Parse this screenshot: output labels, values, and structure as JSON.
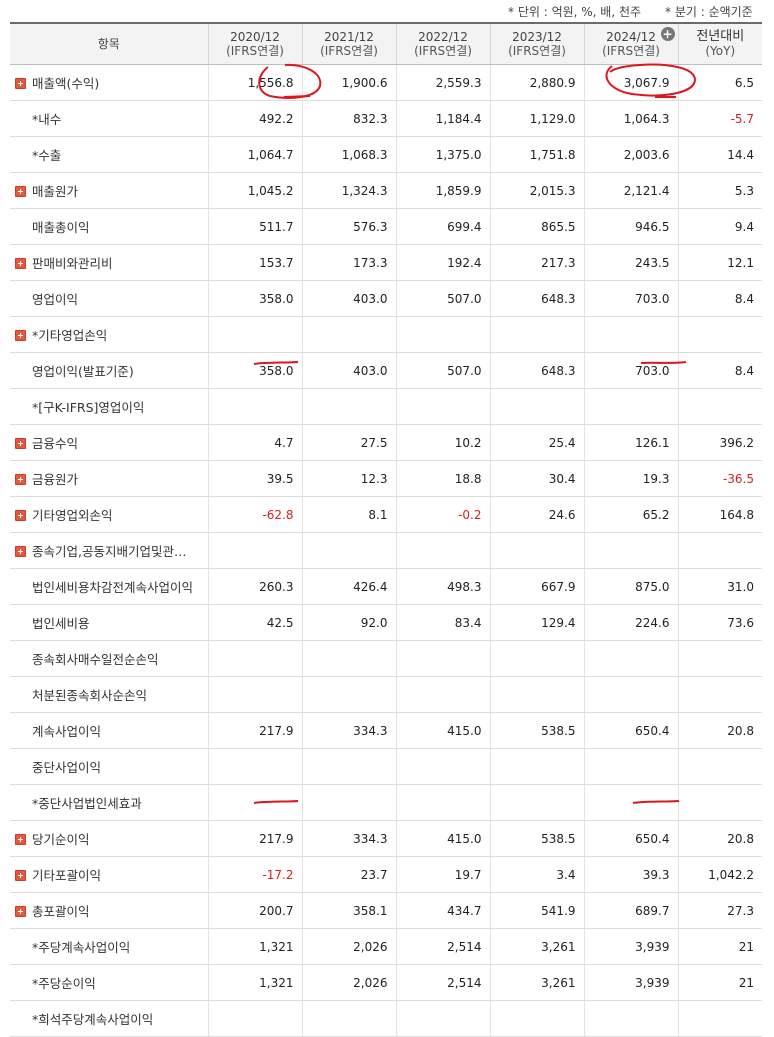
{
  "notes": {
    "unit": "* 단위 : 억원, %, 배, 천주",
    "quarter": "* 분기 : 순액기준"
  },
  "header": {
    "item": "항목",
    "cols": [
      {
        "year": "2020/12",
        "sub": "(IFRS연결)"
      },
      {
        "year": "2021/12",
        "sub": "(IFRS연결)"
      },
      {
        "year": "2022/12",
        "sub": "(IFRS연결)"
      },
      {
        "year": "2023/12",
        "sub": "(IFRS연결)"
      },
      {
        "year": "2024/12",
        "sub": "(IFRS연결)"
      }
    ],
    "yoy": {
      "main": "전년대비",
      "sub": "(YoY)"
    },
    "add_icon": "plus-circle-icon"
  },
  "rows": [
    {
      "label": "매출액(수익)",
      "expand": true,
      "v": [
        "1,556.8",
        "1,900.6",
        "2,559.3",
        "2,880.9",
        "3,067.9",
        "6.5"
      ]
    },
    {
      "label": "*내수",
      "expand": false,
      "v": [
        "492.2",
        "832.3",
        "1,184.4",
        "1,129.0",
        "1,064.3",
        "-5.7"
      ]
    },
    {
      "label": "*수출",
      "expand": false,
      "v": [
        "1,064.7",
        "1,068.3",
        "1,375.0",
        "1,751.8",
        "2,003.6",
        "14.4"
      ]
    },
    {
      "label": "매출원가",
      "expand": true,
      "v": [
        "1,045.2",
        "1,324.3",
        "1,859.9",
        "2,015.3",
        "2,121.4",
        "5.3"
      ]
    },
    {
      "label": "매출총이익",
      "expand": false,
      "v": [
        "511.7",
        "576.3",
        "699.4",
        "865.5",
        "946.5",
        "9.4"
      ]
    },
    {
      "label": "판매비와관리비",
      "expand": true,
      "v": [
        "153.7",
        "173.3",
        "192.4",
        "217.3",
        "243.5",
        "12.1"
      ]
    },
    {
      "label": "영업이익",
      "expand": false,
      "v": [
        "358.0",
        "403.0",
        "507.0",
        "648.3",
        "703.0",
        "8.4"
      ]
    },
    {
      "label": "*기타영업손익",
      "expand": true,
      "v": [
        "",
        "",
        "",
        "",
        "",
        ""
      ]
    },
    {
      "label": "영업이익(발표기준)",
      "expand": false,
      "v": [
        "358.0",
        "403.0",
        "507.0",
        "648.3",
        "703.0",
        "8.4"
      ]
    },
    {
      "label": "*[구K-IFRS]영업이익",
      "expand": false,
      "v": [
        "",
        "",
        "",
        "",
        "",
        ""
      ]
    },
    {
      "label": "금융수익",
      "expand": true,
      "v": [
        "4.7",
        "27.5",
        "10.2",
        "25.4",
        "126.1",
        "396.2"
      ]
    },
    {
      "label": "금융원가",
      "expand": true,
      "v": [
        "39.5",
        "12.3",
        "18.8",
        "30.4",
        "19.3",
        "-36.5"
      ]
    },
    {
      "label": "기타영업외손익",
      "expand": true,
      "v": [
        "-62.8",
        "8.1",
        "-0.2",
        "24.6",
        "65.2",
        "164.8"
      ]
    },
    {
      "label": "종속기업,공동지배기업및관…",
      "expand": true,
      "v": [
        "",
        "",
        "",
        "",
        "",
        ""
      ]
    },
    {
      "label": "법인세비용차감전계속사업이익",
      "expand": false,
      "v": [
        "260.3",
        "426.4",
        "498.3",
        "667.9",
        "875.0",
        "31.0"
      ]
    },
    {
      "label": "법인세비용",
      "expand": false,
      "v": [
        "42.5",
        "92.0",
        "83.4",
        "129.4",
        "224.6",
        "73.6"
      ]
    },
    {
      "label": "종속회사매수일전순손익",
      "expand": false,
      "v": [
        "",
        "",
        "",
        "",
        "",
        ""
      ]
    },
    {
      "label": "처분된종속회사순손익",
      "expand": false,
      "v": [
        "",
        "",
        "",
        "",
        "",
        ""
      ]
    },
    {
      "label": "계속사업이익",
      "expand": false,
      "v": [
        "217.9",
        "334.3",
        "415.0",
        "538.5",
        "650.4",
        "20.8"
      ]
    },
    {
      "label": "중단사업이익",
      "expand": false,
      "v": [
        "",
        "",
        "",
        "",
        "",
        ""
      ]
    },
    {
      "label": "*중단사업법인세효과",
      "expand": false,
      "v": [
        "",
        "",
        "",
        "",
        "",
        ""
      ]
    },
    {
      "label": "당기순이익",
      "expand": true,
      "v": [
        "217.9",
        "334.3",
        "415.0",
        "538.5",
        "650.4",
        "20.8"
      ]
    },
    {
      "label": "기타포괄이익",
      "expand": true,
      "v": [
        "-17.2",
        "23.7",
        "19.7",
        "3.4",
        "39.3",
        "1,042.2"
      ]
    },
    {
      "label": "총포괄이익",
      "expand": true,
      "v": [
        "200.7",
        "358.1",
        "434.7",
        "541.9",
        "689.7",
        "27.3"
      ]
    },
    {
      "label": "*주당계속사업이익",
      "expand": false,
      "v": [
        "1,321",
        "2,026",
        "2,514",
        "3,261",
        "3,939",
        "21"
      ]
    },
    {
      "label": "*주당순이익",
      "expand": false,
      "v": [
        "1,321",
        "2,026",
        "2,514",
        "3,261",
        "3,939",
        "21"
      ]
    },
    {
      "label": "*희석주당계속사업이익",
      "expand": false,
      "v": [
        "",
        "",
        "",
        "",
        "",
        ""
      ]
    }
  ],
  "colors": {
    "negative": "#d62020",
    "annotation": "#e0141e",
    "expand_icon": "#e8573b"
  }
}
